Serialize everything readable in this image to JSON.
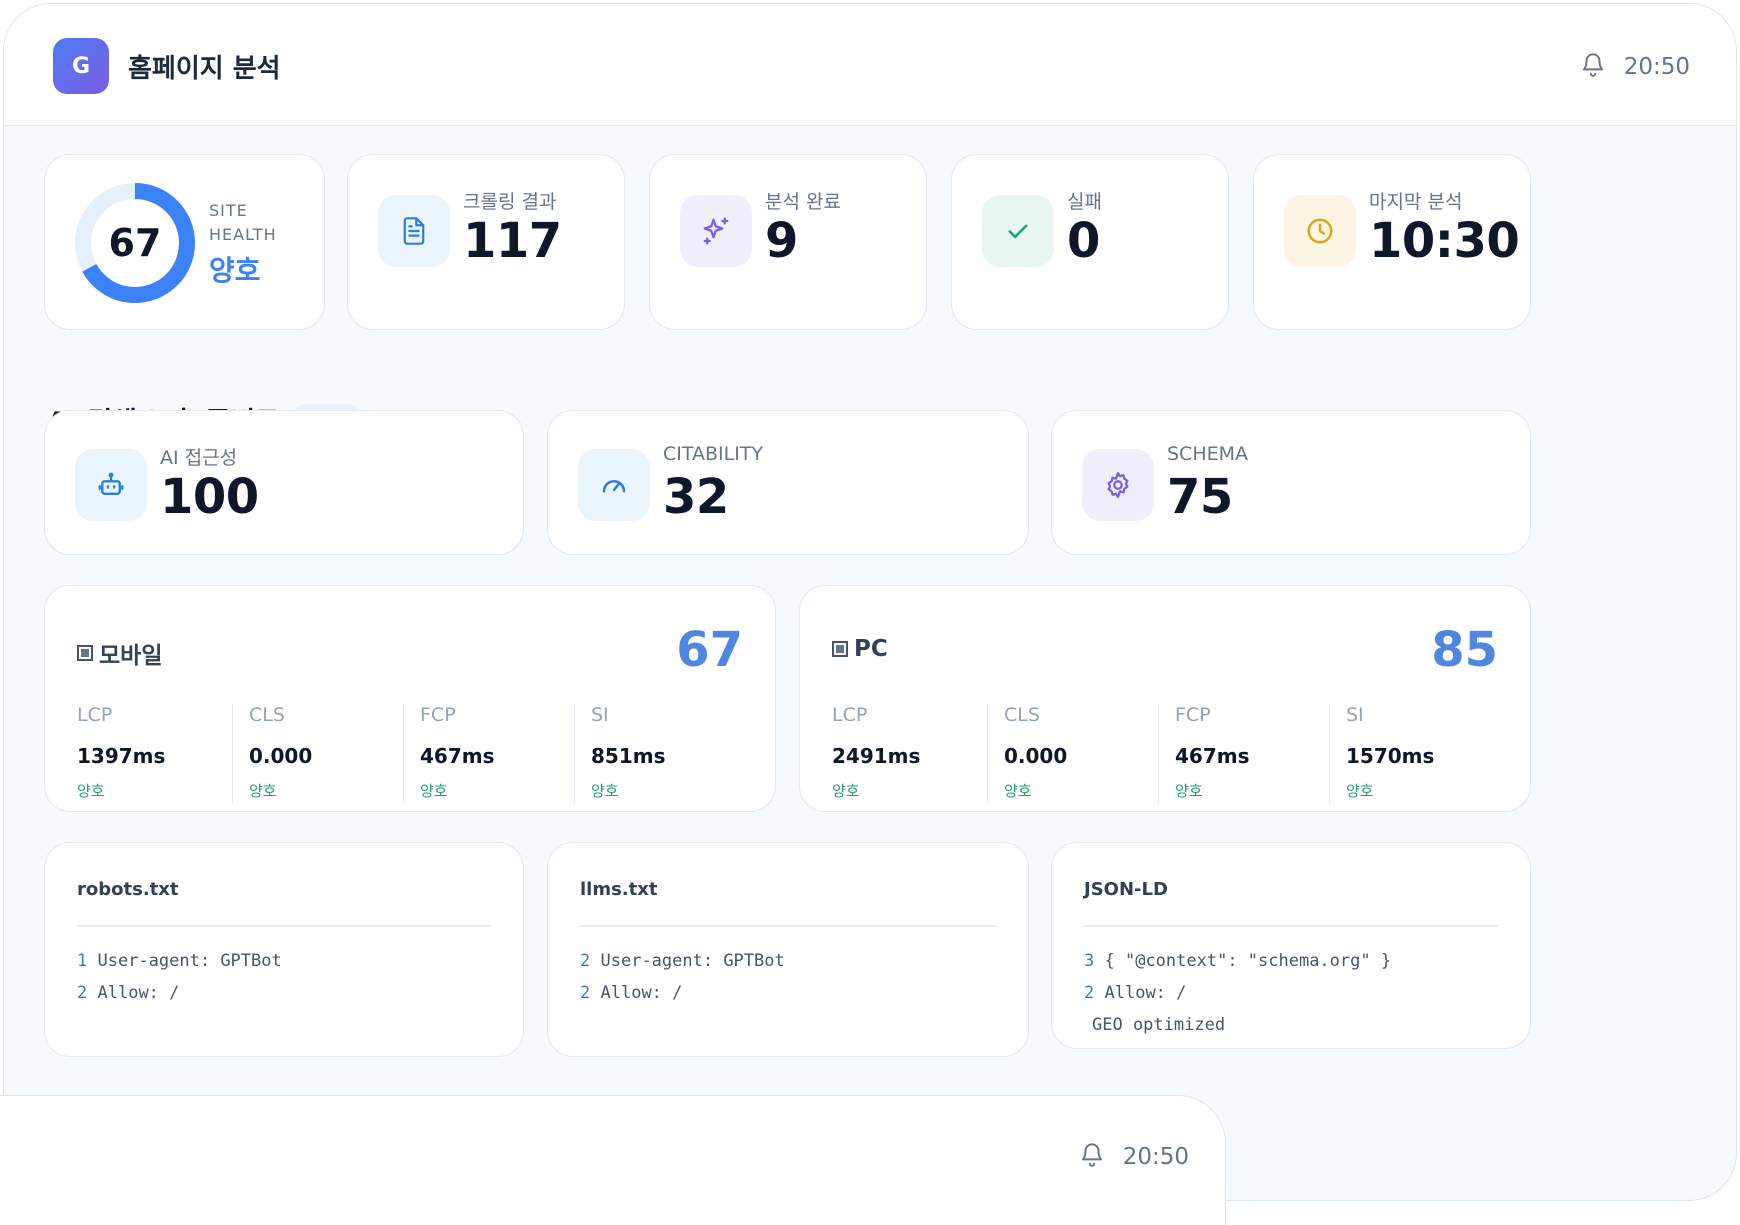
{
  "header": {
    "logo_letter": "G",
    "title": "홈페이지 분석",
    "time": "20:50",
    "bell_icon": "bell-icon"
  },
  "health": {
    "score": "67",
    "label_line1": "SITE",
    "label_line2": "HEALTH",
    "status": "양호",
    "progress": 0.67
  },
  "stats": [
    {
      "label": "크롤링 결과",
      "value": "117",
      "icon": "document-icon"
    },
    {
      "label": "분석 완료",
      "value": "9",
      "icon": "sparkles-icon"
    },
    {
      "label": "실패",
      "value": "0",
      "icon": "check-icon"
    },
    {
      "label": "마지막 분석",
      "value": "10:30",
      "icon": "clock-icon"
    }
  ],
  "ai_section": {
    "title": "AI 검색 노출 준비도",
    "badge": "Beta"
  },
  "ai_cards": [
    {
      "label": "AI 접근성",
      "value": "100",
      "icon": "robot-icon"
    },
    {
      "label": "CITABILITY",
      "value": "32",
      "icon": "gauge-icon"
    },
    {
      "label": "SCHEMA",
      "value": "75",
      "icon": "gear-icon"
    }
  ],
  "performance": [
    {
      "title": "모바일",
      "score": "67",
      "metrics": [
        {
          "name": "LCP",
          "value": "1397ms",
          "status": "양호"
        },
        {
          "name": "CLS",
          "value": "0.000",
          "status": "양호"
        },
        {
          "name": "FCP",
          "value": "467ms",
          "status": "양호"
        },
        {
          "name": "SI",
          "value": "851ms",
          "status": "양호"
        }
      ]
    },
    {
      "title": "PC",
      "score": "85",
      "metrics": [
        {
          "name": "LCP",
          "value": "2491ms",
          "status": "양호"
        },
        {
          "name": "CLS",
          "value": "0.000",
          "status": "양호"
        },
        {
          "name": "FCP",
          "value": "467ms",
          "status": "양호"
        },
        {
          "name": "SI",
          "value": "1570ms",
          "status": "양호"
        }
      ]
    }
  ],
  "files": [
    {
      "title": "robots.txt",
      "lines": [
        {
          "n": "1",
          "text": "User-agent: GPTBot"
        },
        {
          "n": "2",
          "text": "Allow: /"
        }
      ]
    },
    {
      "title": "llms.txt",
      "lines": [
        {
          "n": "2",
          "text": "User-agent: GPTBot"
        },
        {
          "n": "2",
          "text": "Allow: /"
        }
      ]
    },
    {
      "title": "JSON-LD",
      "lines": [
        {
          "n": "3",
          "text": "{ \"@context\": \"schema.org\" }"
        },
        {
          "n": "2",
          "text": "Allow: /"
        },
        {
          "n": "",
          "text": "GEO optimized"
        }
      ]
    }
  ],
  "overlay": {
    "time": "20:50"
  },
  "colors": {
    "accent": "#3b82f6",
    "good": "#22a36b",
    "score": "#4f87e0"
  }
}
